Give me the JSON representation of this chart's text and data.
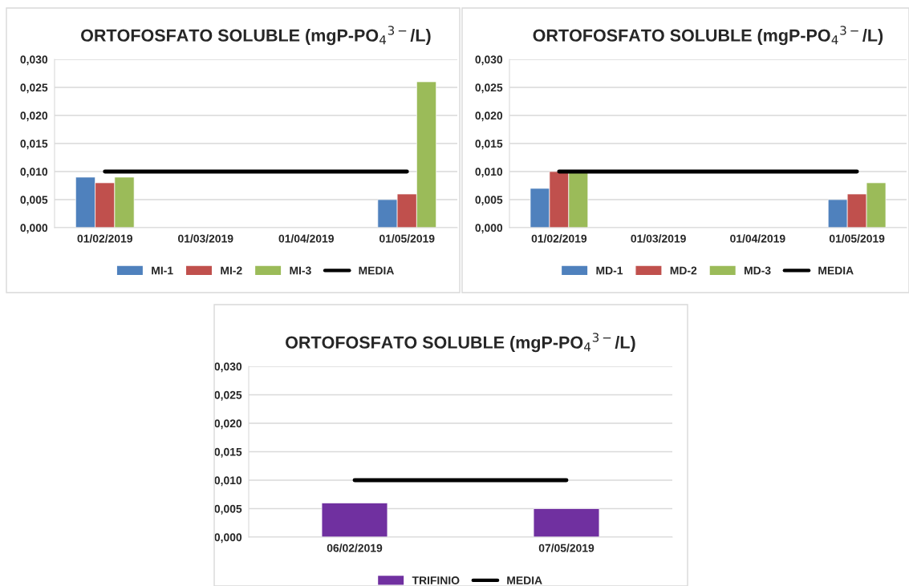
{
  "chart_data": [
    {
      "type": "bar",
      "title": "ORTOFOSFATO SOLUBLE (mgP-PO$_{4}$$^{3−}$/L)",
      "categories": [
        "01/02/2019",
        "01/03/2019",
        "01/04/2019",
        "01/05/2019"
      ],
      "series": [
        {
          "name": "MI-1",
          "color": "#4f81bd",
          "values": [
            0.009,
            null,
            null,
            0.005
          ]
        },
        {
          "name": "MI-2",
          "color": "#c0504d",
          "values": [
            0.008,
            null,
            null,
            0.006
          ]
        },
        {
          "name": "MI-3",
          "color": "#9bbb59",
          "values": [
            0.009,
            null,
            null,
            0.026
          ]
        },
        {
          "name": "MEDIA",
          "type": "line",
          "color": "#000000",
          "values": [
            0.01,
            0.01,
            0.01,
            0.01
          ]
        }
      ],
      "ylim": [
        0,
        0.03
      ],
      "yticks": [
        {
          "value": 0,
          "label": "0,000"
        },
        {
          "value": 0.005,
          "label": "0,005"
        },
        {
          "value": 0.01,
          "label": "0,010"
        },
        {
          "value": 0.015,
          "label": "0,015"
        },
        {
          "value": 0.02,
          "label": "0,020"
        },
        {
          "value": 0.025,
          "label": "0,025"
        },
        {
          "value": 0.03,
          "label": "0,030"
        }
      ],
      "grid": "y",
      "legend": "bottom",
      "marker": "none",
      "line_style": "solid"
    },
    {
      "type": "bar",
      "title": "ORTOFOSFATO SOLUBLE (mgP-PO$_{4}$$^{3−}$/L)",
      "categories": [
        "01/02/2019",
        "01/03/2019",
        "01/04/2019",
        "01/05/2019"
      ],
      "series": [
        {
          "name": "MD-1",
          "color": "#4f81bd",
          "values": [
            0.007,
            null,
            null,
            0.005
          ]
        },
        {
          "name": "MD-2",
          "color": "#c0504d",
          "values": [
            0.01,
            null,
            null,
            0.006
          ]
        },
        {
          "name": "MD-3",
          "color": "#9bbb59",
          "values": [
            0.01,
            null,
            null,
            0.008
          ]
        },
        {
          "name": "MEDIA",
          "type": "line",
          "color": "#000000",
          "values": [
            0.01,
            0.01,
            0.01,
            0.01
          ]
        }
      ],
      "ylim": [
        0,
        0.03
      ],
      "yticks": [
        {
          "value": 0,
          "label": "0,000"
        },
        {
          "value": 0.005,
          "label": "0,005"
        },
        {
          "value": 0.01,
          "label": "0,010"
        },
        {
          "value": 0.015,
          "label": "0,015"
        },
        {
          "value": 0.02,
          "label": "0,020"
        },
        {
          "value": 0.025,
          "label": "0,025"
        },
        {
          "value": 0.03,
          "label": "0,030"
        }
      ],
      "grid": "y",
      "legend": "bottom",
      "marker": "none",
      "line_style": "solid"
    },
    {
      "type": "bar",
      "title": "ORTOFOSFATO SOLUBLE (mgP-PO$_{4}$$^{3−}$/L)",
      "categories": [
        "06/02/2019",
        "07/05/2019"
      ],
      "series": [
        {
          "name": "TRIFINIO",
          "color": "#7030a0",
          "values": [
            0.006,
            0.005
          ]
        },
        {
          "name": "MEDIA",
          "type": "line",
          "color": "#000000",
          "values": [
            0.01,
            0.01
          ]
        }
      ],
      "ylim": [
        0,
        0.03
      ],
      "yticks": [
        {
          "value": 0,
          "label": "0,000"
        },
        {
          "value": 0.005,
          "label": "0,005"
        },
        {
          "value": 0.01,
          "label": "0,010"
        },
        {
          "value": 0.015,
          "label": "0,015"
        },
        {
          "value": 0.02,
          "label": "0,020"
        },
        {
          "value": 0.025,
          "label": "0,025"
        },
        {
          "value": 0.03,
          "label": "0,030"
        }
      ],
      "grid": "y",
      "legend": "bottom",
      "marker": "none",
      "line_style": "solid"
    }
  ]
}
